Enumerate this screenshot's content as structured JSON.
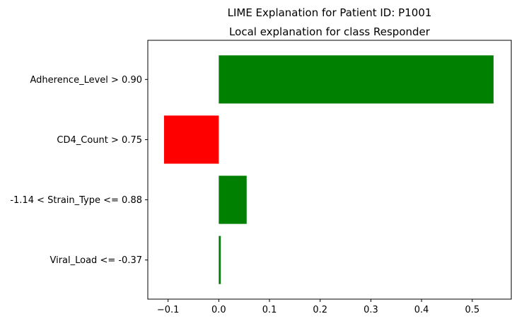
{
  "suptitle": "LIME Explanation for Patient ID: P1001",
  "chart_data": {
    "type": "bar",
    "orientation": "horizontal",
    "title": "Local explanation for class Responder",
    "xlabel": "",
    "ylabel": "",
    "categories": [
      "Adherence_Level > 0.90",
      "CD4_Count > 0.75",
      "-1.14 < Strain_Type <= 0.88",
      "Viral_Load <= -0.37"
    ],
    "values": [
      0.542,
      -0.108,
      0.055,
      0.004
    ],
    "xlim": [
      -0.14,
      0.577
    ],
    "xticks": [
      -0.1,
      0.0,
      0.1,
      0.2,
      0.3,
      0.4,
      0.5
    ],
    "xtick_labels": [
      "−0.1",
      "0.0",
      "0.1",
      "0.2",
      "0.3",
      "0.4",
      "0.5"
    ],
    "grid": false,
    "colors": {
      "positive": "#008000",
      "negative": "#ff0000"
    }
  }
}
